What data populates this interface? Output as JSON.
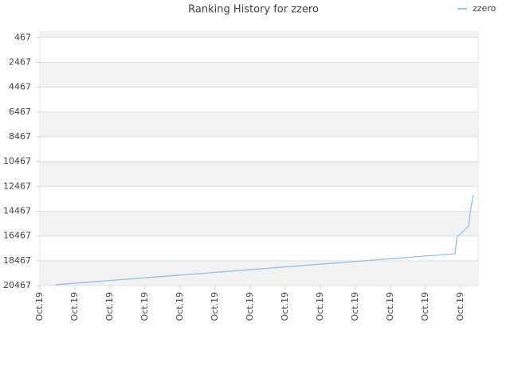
{
  "chart_data": {
    "type": "line",
    "title": "Ranking History for zzero",
    "series": [
      {
        "name": "zzero",
        "color": "#90c3f0",
        "x": [
          0.45,
          11.84,
          11.9,
          12.0,
          12.23,
          12.27,
          12.36
        ],
        "values": [
          20400,
          17900,
          16500,
          16300,
          15650,
          14650,
          13150
        ]
      }
    ],
    "xlim": [
      0,
      12.5
    ],
    "xticks": [
      {
        "value": 0,
        "label": "Oct.19"
      },
      {
        "value": 1,
        "label": "Oct.19"
      },
      {
        "value": 2,
        "label": "Oct.19"
      },
      {
        "value": 3,
        "label": "Oct.19"
      },
      {
        "value": 4,
        "label": "Oct.19"
      },
      {
        "value": 5,
        "label": "Oct.19"
      },
      {
        "value": 6,
        "label": "Oct.19"
      },
      {
        "value": 7,
        "label": "Oct.19"
      },
      {
        "value": 8,
        "label": "Oct.19"
      },
      {
        "value": 9,
        "label": "Oct.19"
      },
      {
        "value": 10,
        "label": "Oct.19"
      },
      {
        "value": 11,
        "label": "Oct.19"
      },
      {
        "value": 12,
        "label": "Oct.19"
      }
    ],
    "ylim": [
      20467,
      0
    ],
    "yticks": [
      467,
      2467,
      4467,
      6467,
      8467,
      10467,
      12467,
      14467,
      16467,
      18467,
      20467
    ],
    "grid": true,
    "legend": "top-right"
  }
}
